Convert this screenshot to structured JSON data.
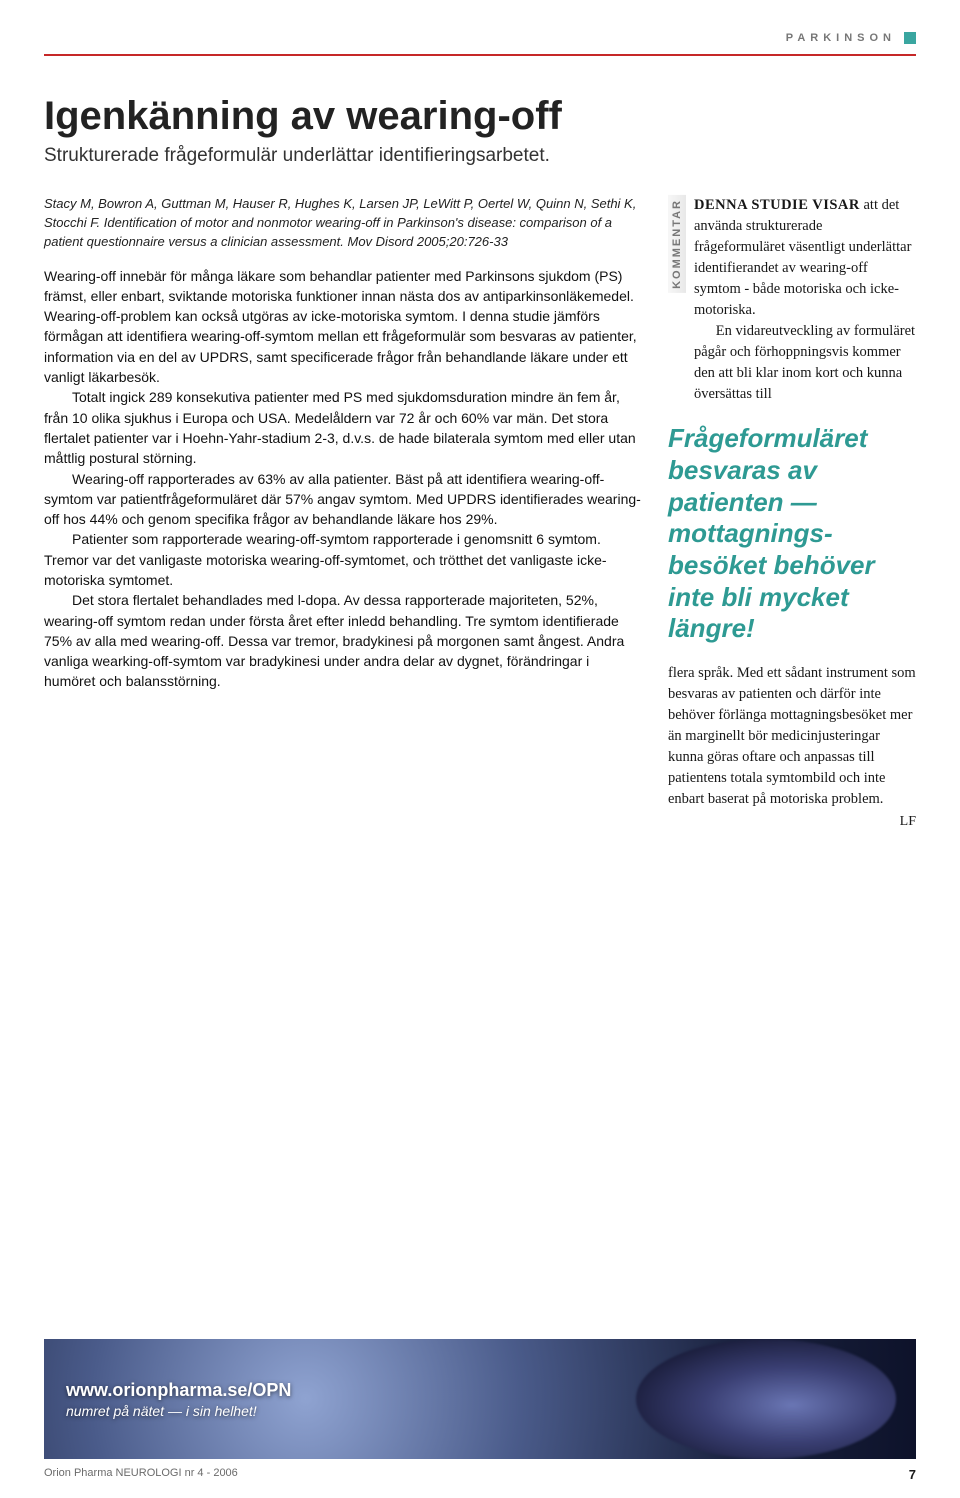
{
  "section_label": "PARKINSON",
  "accent_color": "#3aa6a0",
  "rule_color": "#c62828",
  "title": "Igenkänning av wearing-off",
  "subtitle": "Strukturerade frågeformulär underlättar identifieringsarbetet.",
  "citation": "Stacy M, Bowron A, Guttman M, Hauser R, Hughes K, Larsen JP, LeWitt P, Oertel W, Quinn N, Sethi K, Stocchi F. Identification of motor and nonmotor wearing-off in Parkinson's disease: comparison of a patient questionnaire versus a clinician assessment. Mov Disord 2005;20:726-33",
  "body_paragraphs": [
    "Wearing-off innebär för många läkare som behandlar patienter med Parkinsons sjukdom (PS) främst, eller enbart, sviktande motoriska funktioner innan nästa dos av antiparkinsonläkemedel. Wearing-off-problem kan också utgöras av icke-motoriska symtom. I denna studie jämförs förmågan att identifiera wearing-off-symtom mellan ett frågeformulär som besvaras av patienter, information via en del av UPDRS, samt specificerade frågor från behandlande läkare under ett vanligt läkarbesök.",
    "Totalt ingick 289 konsekutiva patienter med PS med sjukdoms­duration mindre än fem år, från 10 olika sjukhus i Europa och USA. Medelåldern var 72 år och 60% var män. Det stora flertalet patienter var i Hoehn-Yahr-stadium 2-3, d.v.s. de hade bilaterala symtom med eller utan måttlig postural störning.",
    "Wearing-off rapporterades av 63% av alla patienter. Bäst på att identifiera wearing-off-symtom var patientfrågeformuläret där 57% angav symtom. Med UPDRS identifierades wearing-off hos 44% och genom specifika frågor av behandlande läkare hos 29%.",
    "Patienter som rapporterade wearing-off-symtom rapporterade i genomsnitt 6 symtom. Tremor var det vanligaste motoriska wearing-off-symtomet, och trötthet det vanligaste icke-motoriska symtomet.",
    "Det stora flertalet behandlades med l-dopa. Av dessa rapporterade majoriteten, 52%, wearing-off symtom redan under första året efter inledd behandling. Tre symtom identifierade 75% av alla med wearing-off. Dessa var tremor, bradykinesi på morgonen samt ångest. Andra vanliga wearking-off-symtom var bradykinesi under andra delar av dygnet, förändringar i humöret och balansstörning."
  ],
  "kommentar_tag": "KOMMENTAR",
  "kommentar_lead": "DENNA STUDIE VISAR",
  "kommentar_p1": " att det använda strukturerade frågeformuläret väsentligt underlättar identifierandet av wearing-off symtom - både motoriska och icke-motoriska.",
  "kommentar_p1b": "En vidareutveckling av formuläret pågår och förhoppningsvis kommer den att bli klar inom kort och kunna översättas till",
  "pull_quote": "Frågeformuläret besvaras av patienten — mottagnings­besöket behöver inte bli mycket längre!",
  "kommentar_p2": "flera språk. Med ett sådant instrument som besvaras av patienten och därför inte behöver förlänga mottagningsbesöket mer än marginellt bör medicinjusteringar kunna göras oftare och anpassas till patientens totala symtombild och inte enbart baserat på motoriska problem.",
  "byline": "LF",
  "footer_url": "www.orionpharma.se/OPN",
  "footer_tag": "numret på nätet — i sin helhet!",
  "running_left": "Orion Pharma NEUROLOGI nr 4 - 2006",
  "running_right": "7"
}
